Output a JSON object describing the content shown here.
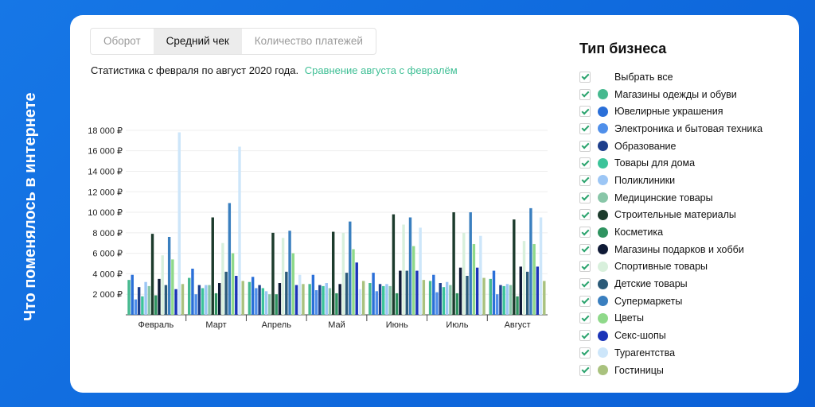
{
  "side_title": "Что поменялось в интернете",
  "tabs": [
    {
      "label": "Оборот",
      "active": false
    },
    {
      "label": "Средний чек",
      "active": true
    },
    {
      "label": "Количество платежей",
      "active": false
    }
  ],
  "subtitle": {
    "text": "Статистика с февраля по август 2020 года.",
    "link": "Сравнение августа с февралём"
  },
  "legend": {
    "title": "Тип бизнеса",
    "select_all": "Выбрать все",
    "items": [
      {
        "label": "Магазины одежды и обуви",
        "color": "#46b98f"
      },
      {
        "label": "Ювелирные украшения",
        "color": "#2a6fd8"
      },
      {
        "label": "Электроника и бытовая техника",
        "color": "#4f8fea"
      },
      {
        "label": "Образование",
        "color": "#1e3f8c"
      },
      {
        "label": "Товары для дома",
        "color": "#3cc49a"
      },
      {
        "label": "Поликлиники",
        "color": "#9cc6f5"
      },
      {
        "label": "Медицинские товары",
        "color": "#88c6a8"
      },
      {
        "label": "Строительные материалы",
        "color": "#1c3b2c"
      },
      {
        "label": "Косметика",
        "color": "#2f9360"
      },
      {
        "label": "Магазины подарков и хобби",
        "color": "#0f1a36"
      },
      {
        "label": "Спортивные товары",
        "color": "#d8f0dc"
      },
      {
        "label": "Детские товары",
        "color": "#2b5a78"
      },
      {
        "label": "Супермаркеты",
        "color": "#3a7fbf"
      },
      {
        "label": "Цветы",
        "color": "#8fd98a"
      },
      {
        "label": "Секс-шопы",
        "color": "#1b34b8"
      },
      {
        "label": "Турагентства",
        "color": "#cde6fa"
      },
      {
        "label": "Гостиницы",
        "color": "#a9c27e"
      }
    ]
  },
  "chart_data": {
    "type": "bar",
    "categories": [
      "Февраль",
      "Март",
      "Апрель",
      "Май",
      "Июнь",
      "Июль",
      "Август"
    ],
    "ylim": [
      0,
      19000
    ],
    "yticks": [
      2000,
      4000,
      6000,
      8000,
      10000,
      12000,
      14000,
      16000,
      18000
    ],
    "ytick_labels": [
      "2 000 ₽",
      "4 000 ₽",
      "6 000 ₽",
      "8 000 ₽",
      "10 000 ₽",
      "12 000 ₽",
      "14 000 ₽",
      "16 000 ₽",
      "18 000 ₽"
    ],
    "grid": true,
    "series": [
      {
        "name": "Магазины одежды и обуви",
        "values": [
          3400,
          3600,
          3200,
          3000,
          3100,
          3300,
          3500
        ]
      },
      {
        "name": "Ювелирные украшения",
        "values": [
          3900,
          4500,
          3700,
          3900,
          4100,
          3900,
          4300
        ]
      },
      {
        "name": "Электроника и бытовая техника",
        "values": [
          1500,
          2000,
          2600,
          2400,
          2300,
          2200,
          2000
        ]
      },
      {
        "name": "Образование",
        "values": [
          2700,
          2900,
          2900,
          2900,
          3000,
          3100,
          2900
        ]
      },
      {
        "name": "Товары для дома",
        "values": [
          1800,
          2600,
          2600,
          2800,
          2800,
          2700,
          2800
        ]
      },
      {
        "name": "Поликлиники",
        "values": [
          3200,
          2900,
          2300,
          3100,
          3000,
          3200,
          3000
        ]
      },
      {
        "name": "Медицинские товары",
        "values": [
          2800,
          2900,
          2000,
          2600,
          2800,
          2900,
          2900
        ]
      },
      {
        "name": "Строительные материалы",
        "values": [
          7900,
          9500,
          8000,
          8100,
          9800,
          10000,
          9300
        ]
      },
      {
        "name": "Косметика",
        "values": [
          1900,
          2100,
          2000,
          2100,
          2100,
          2100,
          1800
        ]
      },
      {
        "name": "Магазины подарков и хобби",
        "values": [
          3500,
          3100,
          3100,
          3000,
          4300,
          4600,
          4700
        ]
      },
      {
        "name": "Спортивные товары",
        "values": [
          5800,
          7000,
          7500,
          8000,
          8800,
          8000,
          7200
        ]
      },
      {
        "name": "Детские товары",
        "values": [
          2900,
          4200,
          4200,
          4100,
          4300,
          3800,
          4200
        ]
      },
      {
        "name": "Супермаркеты",
        "values": [
          7600,
          10900,
          8200,
          9100,
          9500,
          10000,
          10400
        ]
      },
      {
        "name": "Цветы",
        "values": [
          5400,
          6000,
          6000,
          6400,
          6700,
          6900,
          6900
        ]
      },
      {
        "name": "Секс-шопы",
        "values": [
          2500,
          3800,
          2900,
          5100,
          4300,
          4600,
          4700
        ]
      },
      {
        "name": "Турагентства",
        "values": [
          17800,
          16400,
          3900,
          2500,
          8500,
          7700,
          9500
        ]
      },
      {
        "name": "Гостиницы",
        "values": [
          3000,
          3300,
          3000,
          3300,
          3400,
          3600,
          3300
        ]
      }
    ]
  }
}
